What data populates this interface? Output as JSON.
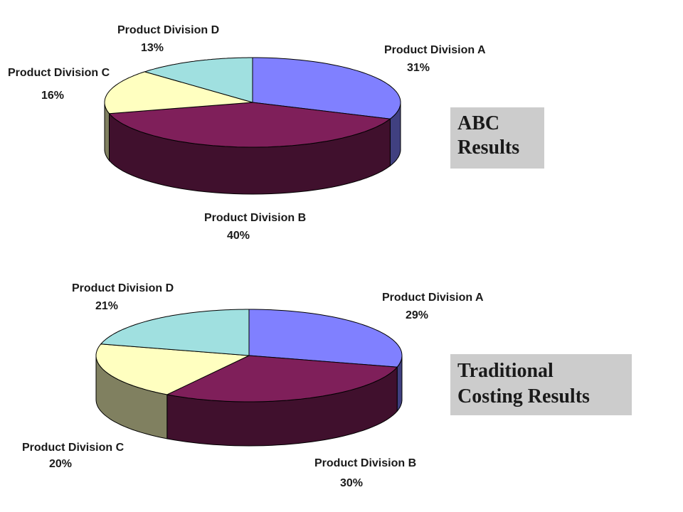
{
  "chart_data": [
    {
      "type": "pie",
      "title": "ABC Results",
      "style": "3d",
      "slices": [
        {
          "label": "Product Division A",
          "value": 31,
          "value_label": "31%",
          "color": "#8080ff"
        },
        {
          "label": "Product Division B",
          "value": 40,
          "value_label": "40%",
          "color": "#7f1f5a"
        },
        {
          "label": "Product Division C",
          "value": 16,
          "value_label": "16%",
          "color": "#ffffc0"
        },
        {
          "label": "Product Division D",
          "value": 13,
          "value_label": "13%",
          "color": "#a0e0e0"
        }
      ]
    },
    {
      "type": "pie",
      "title": "Traditional Costing Results",
      "style": "3d",
      "slices": [
        {
          "label": "Product Division A",
          "value": 29,
          "value_label": "29%",
          "color": "#8080ff"
        },
        {
          "label": "Product Division B",
          "value": 30,
          "value_label": "30%",
          "color": "#7f1f5a"
        },
        {
          "label": "Product Division C",
          "value": 20,
          "value_label": "20%",
          "color": "#ffffc0"
        },
        {
          "label": "Product Division D",
          "value": 21,
          "value_label": "21%",
          "color": "#a0e0e0"
        }
      ]
    }
  ],
  "boxes": {
    "abc_line1": "ABC",
    "abc_line2": "Results",
    "trad_line1": "Traditional",
    "trad_line2": "Costing Results"
  }
}
